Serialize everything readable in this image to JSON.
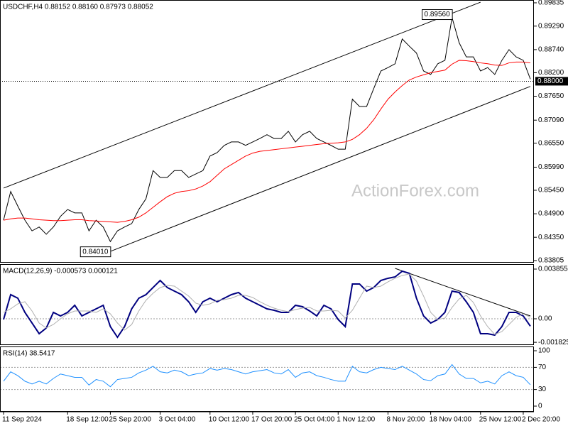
{
  "chart_data": [
    {
      "type": "line",
      "title": "USDCHF,H4 0.88152 0.88160 0.87973 0.88052",
      "watermark": "ActionForex.com",
      "ylim": [
        0.83755,
        0.89901
      ],
      "yticks": [
        0.89835,
        {
          "value": 0.8929,
          "label": "0.89290"
        },
        {
          "value": 0.8874,
          "label": "0.88740"
        },
        {
          "value": 0.882,
          "label": "0.88200"
        },
        {
          "value": 0.8765,
          "label": "0.87650"
        },
        {
          "value": 0.8709,
          "label": "0.87090"
        },
        {
          "value": 0.8655,
          "label": "0.86550"
        },
        {
          "value": 0.8599,
          "label": "0.85990"
        },
        {
          "value": 0.8545,
          "label": "0.85450"
        },
        {
          "value": 0.849,
          "label": "0.84900"
        },
        {
          "value": 0.8435,
          "label": "0.84350"
        },
        0.83805
      ],
      "series": [
        {
          "color": "#000000",
          "values": [
            0.8475,
            0.8542,
            0.8508,
            0.8475,
            0.845,
            0.8459,
            0.8442,
            0.8459,
            0.8484,
            0.85,
            0.8492,
            0.8492,
            0.845,
            0.8475,
            0.8459,
            0.8425,
            0.845,
            0.8459,
            0.8467,
            0.85,
            0.8525,
            0.8591,
            0.8575,
            0.8575,
            0.8591,
            0.8591,
            0.8575,
            0.8583,
            0.8591,
            0.8625,
            0.8633,
            0.865,
            0.8658,
            0.8658,
            0.865,
            0.8658,
            0.8666,
            0.8675,
            0.8666,
            0.8666,
            0.8683,
            0.8658,
            0.8675,
            0.8683,
            0.8666,
            0.8658,
            0.865,
            0.8641,
            0.8641,
            0.8758,
            0.8741,
            0.8741,
            0.8783,
            0.8824,
            0.8832,
            0.8841,
            0.8899,
            0.8882,
            0.8866,
            0.8824,
            0.8816,
            0.8841,
            0.8849,
            0.8949,
            0.889,
            0.8857,
            0.8857,
            0.8824,
            0.8832,
            0.8816,
            0.8849,
            0.8874,
            0.8857,
            0.8849,
            0.8805
          ]
        },
        {
          "color": "#ff0000",
          "values": [
            0.8475,
            0.8478,
            0.848,
            0.848,
            0.8478,
            0.8476,
            0.8475,
            0.8474,
            0.8474,
            0.8475,
            0.8476,
            0.8476,
            0.8474,
            0.8473,
            0.8472,
            0.8471,
            0.847,
            0.8472,
            0.8476,
            0.8482,
            0.8492,
            0.8505,
            0.8518,
            0.853,
            0.8538,
            0.8542,
            0.8544,
            0.8548,
            0.8555,
            0.8565,
            0.858,
            0.8595,
            0.8605,
            0.8615,
            0.8625,
            0.8632,
            0.8636,
            0.8638,
            0.864,
            0.8642,
            0.8644,
            0.8646,
            0.8648,
            0.865,
            0.8652,
            0.8654,
            0.8655,
            0.8656,
            0.8658,
            0.8664,
            0.8675,
            0.869,
            0.871,
            0.8735,
            0.8758,
            0.8775,
            0.879,
            0.8803,
            0.881,
            0.8815,
            0.882,
            0.8823,
            0.8826,
            0.884,
            0.8849,
            0.8848,
            0.8846,
            0.8843,
            0.8841,
            0.8838,
            0.8837,
            0.8843,
            0.8845,
            0.8845,
            0.8843
          ]
        }
      ],
      "trendlines": [
        {
          "color": "#000000",
          "points": [
            [
              0,
              0.855
            ],
            [
              67,
              0.8985
            ]
          ]
        },
        {
          "color": "#000000",
          "points": [
            [
              15,
              0.8402
            ],
            [
              74,
              0.8788
            ]
          ]
        }
      ],
      "annotations": [
        {
          "index": 63,
          "value": 0.8956,
          "label": "0.89560"
        },
        {
          "index": 15,
          "value": 0.8401,
          "label": "0.84010"
        }
      ],
      "price_line": {
        "value": 0.88,
        "label": "0.88000"
      }
    },
    {
      "type": "line",
      "title": "MACD(12,26,9) -0.000573 0.000121",
      "ylim": [
        -0.002039,
        0.004241
      ],
      "yticks": [
        0.003855,
        {
          "value": 0,
          "label": "0.00"
        },
        -0.001825
      ],
      "levels": [
        0
      ],
      "series": [
        {
          "color": "#000080",
          "values": [
            -5.5e-05,
            0.001873,
            0.001598,
            0.000496,
            -0.000331,
            -0.001157,
            -0.000716,
            0.000496,
            0.00022,
            0.000496,
            0.001047,
            0.00022,
            0.000496,
            0.000771,
            0.001047,
            -0.000606,
            -0.001433,
            -0.000606,
            0.000771,
            0.001598,
            0.001873,
            0.002424,
            0.002975,
            0.002424,
            0.002149,
            0.001873,
            0.001322,
            0.000496,
            0.001322,
            0.001598,
            0.001322,
            0.001598,
            0.001873,
            0.002039,
            0.001598,
            0.001322,
            0.001047,
            0.000771,
            0.000661,
            0.000496,
            0.000496,
            0.001047,
            0.000937,
            0.000606,
            0.00022,
            0.001047,
            0.000771,
            -5.5e-05,
            -0.000606,
            0.0027,
            0.0027,
            0.002149,
            0.002424,
            0.002975,
            0.003141,
            0.003251,
            0.003692,
            0.003526,
            0.001598,
            0.00022,
            -0.000331,
            -5.5e-05,
            0.000496,
            0.002149,
            0.002039,
            0.001322,
            0.000496,
            -0.001157,
            -0.001157,
            -0.001267,
            -0.000606,
            0.000496,
            0.000496,
            0.00022,
            -0.000573
          ]
        },
        {
          "color": "#b0b0b0",
          "values": [
            0.000496,
            0.000771,
            0.001157,
            0.001322,
            0.000606,
            -0.000331,
            -0.000716,
            -0.000441,
            0,
            0.000386,
            0.000606,
            0.000606,
            0.000606,
            0.000496,
            0.000771,
            0.000386,
            -0.000331,
            -0.000882,
            -0.000441,
            0.000606,
            0.001433,
            0.001984,
            0.002424,
            0.00259,
            0.002535,
            0.002149,
            0.001763,
            0.001212,
            0.001047,
            0.001157,
            0.001433,
            0.001488,
            0.001598,
            0.001818,
            0.001818,
            0.001653,
            0.001322,
            0.001047,
            0.000827,
            0.000661,
            0.000551,
            0.000716,
            0.000827,
            0.000882,
            0.000606,
            0.000606,
            0.000661,
            0.000606,
            5.5e-05,
            0.000661,
            0.001598,
            0.002535,
            0.002424,
            0.002535,
            0.002865,
            0.003141,
            0.003361,
            0.003471,
            0.00292,
            0.001763,
            0.000496,
            -5.5e-05,
            5.5e-05,
            0.000882,
            0.001543,
            0.001818,
            0.001267,
            0.00022,
            -0.000606,
            -0.001212,
            -0.000992,
            -0.000441,
            0.00011,
            0.000386,
            0.000121
          ]
        }
      ],
      "trendlines": [
        {
          "color": "#000000",
          "points": [
            [
              55,
              0.00391
            ],
            [
              74,
              0.00022
            ]
          ]
        }
      ]
    },
    {
      "type": "line",
      "title": "RSI(14) 38.5417",
      "ylim": [
        -10.26,
        107.7
      ],
      "yticks": [
        100,
        70,
        30,
        0
      ],
      "levels": [
        70,
        30
      ],
      "series": [
        {
          "color": "#1e90ff",
          "values": [
            45,
            62,
            55,
            45,
            40,
            45,
            40,
            50,
            58,
            55,
            52,
            52,
            38,
            48,
            45,
            35,
            48,
            50,
            52,
            60,
            65,
            72,
            62,
            60,
            65,
            62,
            55,
            58,
            60,
            68,
            65,
            68,
            66,
            62,
            58,
            62,
            64,
            66,
            60,
            58,
            66,
            52,
            60,
            62,
            55,
            52,
            48,
            45,
            45,
            72,
            62,
            60,
            66,
            70,
            68,
            66,
            72,
            65,
            58,
            48,
            46,
            55,
            58,
            75,
            58,
            50,
            50,
            42,
            45,
            40,
            55,
            62,
            55,
            52,
            38.5417
          ]
        }
      ],
      "categories": [
        "11 Sep 2024",
        null,
        null,
        null,
        null,
        null,
        null,
        null,
        null,
        "18 Sep 12:00",
        null,
        null,
        null,
        null,
        null,
        "25 Sep 20:00",
        null,
        null,
        null,
        null,
        null,
        null,
        "3 Oct 04:00",
        null,
        null,
        null,
        null,
        null,
        null,
        "10 Oct 12:00",
        null,
        null,
        null,
        null,
        null,
        "17 Oct 20:00",
        null,
        null,
        null,
        null,
        null,
        "25 Oct 04:00",
        null,
        null,
        null,
        null,
        null,
        "1 Nov 12:00",
        null,
        null,
        null,
        null,
        null,
        null,
        "8 Nov 20:00",
        null,
        null,
        null,
        null,
        null,
        "18 Nov 04:00",
        null,
        null,
        null,
        null,
        null,
        null,
        "25 Nov 12:00",
        null,
        null,
        null,
        null,
        null,
        "2 Dec 20:00",
        null
      ]
    }
  ]
}
